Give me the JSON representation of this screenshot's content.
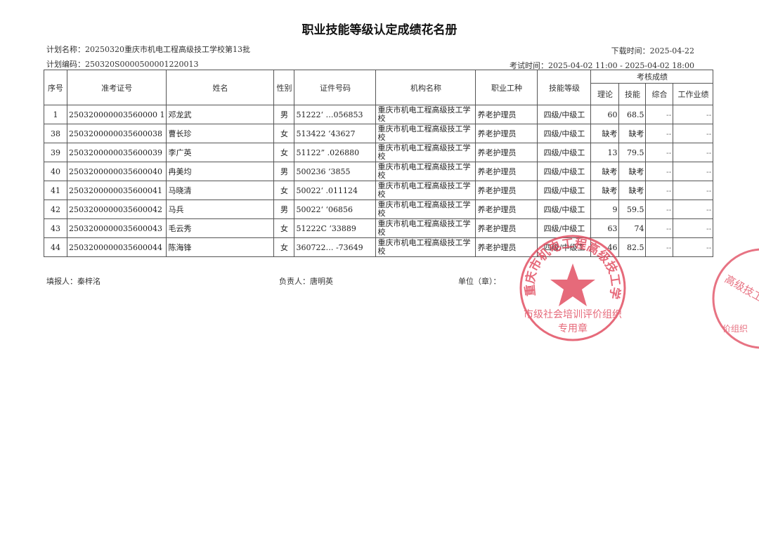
{
  "title": "职业技能等级认定成绩花名册",
  "plan_name": "计划名称：20250320重庆市机电工程高级技工学校第13批",
  "plan_code": "计划编码：250320S0000500001220013",
  "download_time": "下载时间：2025-04-22",
  "exam_time": "考试时间：2025-04-02 11:00 - 2025-04-02 18:00",
  "headers": {
    "seq": "序号",
    "ticket": "准考证号",
    "name": "姓名",
    "gender": "性别",
    "id": "证件号码",
    "org": "机构名称",
    "occupation": "职业工种",
    "level": "技能等级",
    "scores": "考核成绩",
    "theory": "理论",
    "skill": "技能",
    "overall": "综合",
    "work": "工作业绩"
  },
  "rows": [
    {
      "seq": "1",
      "ticket": "250320000003560000 1",
      "name": "邓龙武",
      "gender": "男",
      "id": "51222‘      …056853",
      "org": "重庆市机电工程高级技工学校",
      "occupation": "养老护理员",
      "level": "四级/中级工",
      "theory": "60",
      "skill": "68.5",
      "overall": "--",
      "work": "--"
    },
    {
      "seq": "38",
      "ticket": "2503200000035600038",
      "name": "曹长珍",
      "gender": "女",
      "id": "513422      ‘43627",
      "org": "重庆市机电工程高级技工学校",
      "occupation": "养老护理员",
      "level": "四级/中级工",
      "theory": "缺考",
      "skill": "缺考",
      "overall": "--",
      "work": "--"
    },
    {
      "seq": "39",
      "ticket": "2503200000035600039",
      "name": "李广英",
      "gender": "女",
      "id": "51122”      .026880",
      "org": "重庆市机电工程高级技工学校",
      "occupation": "养老护理员",
      "level": "四级/中级工",
      "theory": "13",
      "skill": "79.5",
      "overall": "--",
      "work": "--"
    },
    {
      "seq": "40",
      "ticket": "2503200000035600040",
      "name": "冉美均",
      "gender": "男",
      "id": "500236       ‘3855",
      "org": "重庆市机电工程高级技工学校",
      "occupation": "养老护理员",
      "level": "四级/中级工",
      "theory": "缺考",
      "skill": "缺考",
      "overall": "--",
      "work": "--"
    },
    {
      "seq": "41",
      "ticket": "2503200000035600041",
      "name": "马晓清",
      "gender": "女",
      "id": "50022‘      .011124",
      "org": "重庆市机电工程高级技工学校",
      "occupation": "养老护理员",
      "level": "四级/中级工",
      "theory": "缺考",
      "skill": "缺考",
      "overall": "--",
      "work": "--"
    },
    {
      "seq": "42",
      "ticket": "2503200000035600042",
      "name": "马兵",
      "gender": "男",
      "id": "50022‘      ‘06856",
      "org": "重庆市机电工程高级技工学校",
      "occupation": "养老护理员",
      "level": "四级/中级工",
      "theory": "9",
      "skill": "59.5",
      "overall": "--",
      "work": "--"
    },
    {
      "seq": "43",
      "ticket": "2503200000035600043",
      "name": "毛云秀",
      "gender": "女",
      "id": "51222C       ‘33889",
      "org": "重庆市机电工程高级技工学校",
      "occupation": "养老护理员",
      "level": "四级/中级工",
      "theory": "63",
      "skill": "74",
      "overall": "--",
      "work": "--"
    },
    {
      "seq": "44",
      "ticket": "2503200000035600044",
      "name": "陈海锋",
      "gender": "女",
      "id": "360722…      ‑73649",
      "org": "重庆市机电工程高级技工学校",
      "occupation": "养老护理员",
      "level": "四级/中级工",
      "theory": "46",
      "skill": "82.5",
      "overall": "--",
      "work": "--"
    }
  ],
  "footer": {
    "filler": "填报人：秦梓洺",
    "responsible": "负责人：唐明英",
    "unit": "单位（章）："
  },
  "stamp": {
    "outer_text": "重庆市机电工程高级技工学校",
    "inner_text": "市级社会培训评价组织",
    "bottom_text": "专用章",
    "color": "#e0455a"
  }
}
